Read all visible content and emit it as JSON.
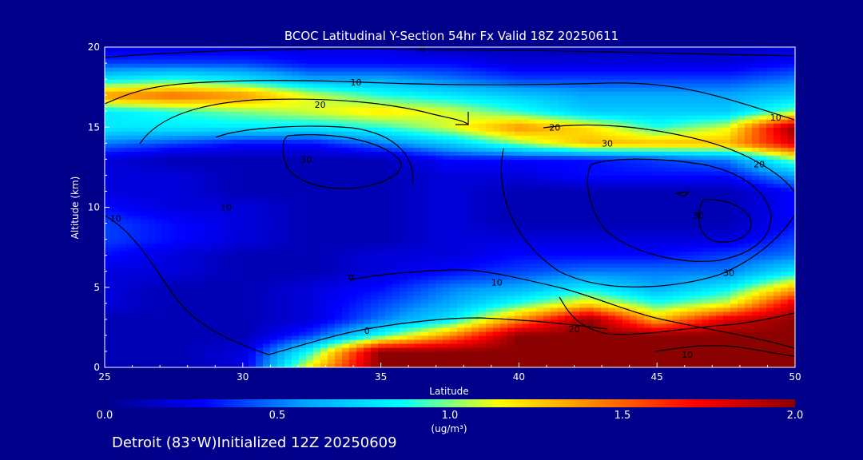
{
  "chart_data": {
    "type": "heatmap",
    "title": "BCOC Latitudinal Y-Section 54hr  Fx Valid 18Z 20250611",
    "xlabel": "Latitude",
    "ylabel": "Altitude (km)",
    "xlim": [
      25,
      50
    ],
    "ylim": [
      0,
      20
    ],
    "x_ticks": [
      "25",
      "30",
      "35",
      "40",
      "45",
      "50"
    ],
    "y_ticks": [
      "0",
      "5",
      "10",
      "15",
      "20"
    ],
    "colorbar": {
      "ticks": [
        "0.0",
        "0.5",
        "1.0",
        "1.5",
        "2.0"
      ],
      "range": [
        0,
        2
      ],
      "unit": "(ug/m³)",
      "colors": [
        "#00008b",
        "#0000ff",
        "#00a0ff",
        "#00ffff",
        "#ffff00",
        "#ff8000",
        "#ff0000",
        "#8b0000"
      ]
    },
    "footer": "Detroit (83°W)Initialized 12Z 20250609",
    "concentration_x": [
      25,
      27.5,
      30,
      32.5,
      35,
      37.5,
      40,
      42.5,
      45,
      47.5,
      50
    ],
    "concentration_y": [
      0,
      1,
      2,
      3,
      4,
      5,
      6,
      7,
      8,
      9,
      10,
      11,
      12,
      13,
      14,
      15,
      16,
      17,
      18,
      19,
      20
    ],
    "concentration": [
      [
        0.1,
        0.1,
        0.2,
        1.2,
        2.0,
        2.0,
        2.0,
        2.0,
        2.0,
        2.0,
        2.0
      ],
      [
        0.1,
        0.1,
        0.2,
        0.9,
        2.0,
        2.0,
        2.0,
        2.0,
        2.0,
        2.0,
        2.0
      ],
      [
        0.1,
        0.1,
        0.1,
        0.4,
        0.9,
        1.4,
        2.0,
        2.0,
        2.0,
        2.0,
        2.0
      ],
      [
        0.1,
        0.1,
        0.1,
        0.2,
        0.5,
        0.8,
        1.4,
        2.0,
        1.3,
        1.8,
        2.0
      ],
      [
        0.2,
        0.1,
        0.1,
        0.2,
        0.4,
        0.6,
        0.9,
        1.2,
        0.9,
        1.1,
        1.8
      ],
      [
        0.2,
        0.1,
        0.1,
        0.2,
        0.3,
        0.5,
        0.6,
        0.8,
        0.6,
        0.8,
        1.3
      ],
      [
        0.2,
        0.2,
        0.1,
        0.1,
        0.2,
        0.3,
        0.4,
        0.5,
        0.5,
        0.5,
        0.8
      ],
      [
        0.3,
        0.2,
        0.1,
        0.1,
        0.2,
        0.2,
        0.3,
        0.3,
        0.3,
        0.4,
        0.5
      ],
      [
        0.4,
        0.3,
        0.2,
        0.1,
        0.1,
        0.2,
        0.2,
        0.2,
        0.2,
        0.2,
        0.4
      ],
      [
        0.4,
        0.3,
        0.2,
        0.1,
        0.1,
        0.2,
        0.1,
        0.1,
        0.1,
        0.1,
        0.3
      ],
      [
        0.3,
        0.2,
        0.2,
        0.1,
        0.1,
        0.2,
        0.1,
        0.1,
        0.1,
        0.1,
        0.3
      ],
      [
        0.2,
        0.2,
        0.1,
        0.1,
        0.1,
        0.2,
        0.1,
        0.1,
        0.1,
        0.1,
        0.3
      ],
      [
        0.2,
        0.2,
        0.1,
        0.1,
        0.1,
        0.2,
        0.2,
        0.3,
        0.3,
        0.3,
        0.6
      ],
      [
        0.2,
        0.1,
        0.1,
        0.1,
        0.1,
        0.3,
        0.3,
        0.3,
        0.4,
        0.5,
        1.0
      ],
      [
        0.5,
        0.4,
        0.3,
        0.3,
        0.5,
        0.7,
        1.0,
        1.3,
        1.3,
        1.3,
        1.8
      ],
      [
        0.8,
        0.8,
        0.8,
        0.8,
        0.9,
        1.1,
        1.4,
        1.2,
        0.9,
        1.1,
        2.0
      ],
      [
        0.8,
        0.9,
        1.0,
        1.1,
        1.2,
        1.1,
        0.9,
        0.7,
        0.7,
        0.7,
        1.0
      ],
      [
        1.4,
        1.5,
        1.4,
        1.1,
        0.9,
        0.8,
        0.7,
        0.6,
        0.6,
        0.6,
        0.7
      ],
      [
        0.8,
        0.9,
        0.8,
        0.6,
        0.6,
        0.5,
        0.4,
        0.4,
        0.4,
        0.4,
        0.5
      ],
      [
        0.4,
        0.4,
        0.4,
        0.3,
        0.3,
        0.3,
        0.2,
        0.2,
        0.2,
        0.2,
        0.3
      ],
      [
        0.2,
        0.2,
        0.2,
        0.2,
        0.2,
        0.1,
        0.1,
        0.1,
        0.1,
        0.1,
        0.2
      ]
    ],
    "contour_labels": [
      {
        "text": "0",
        "x": 36.5,
        "y": 19.9
      },
      {
        "text": "10",
        "x": 34.1,
        "y": 17.8
      },
      {
        "text": "20",
        "x": 32.8,
        "y": 16.4
      },
      {
        "text": "20",
        "x": 41.3,
        "y": 15.0
      },
      {
        "text": "30",
        "x": 43.2,
        "y": 14.0
      },
      {
        "text": "10",
        "x": 49.3,
        "y": 15.6
      },
      {
        "text": "20",
        "x": 48.7,
        "y": 12.7
      },
      {
        "text": "30",
        "x": 32.3,
        "y": 13.0
      },
      {
        "text": "10",
        "x": 29.4,
        "y": 10.0
      },
      {
        "text": "10",
        "x": 25.4,
        "y": 9.3
      },
      {
        "text": "30",
        "x": 46.5,
        "y": 9.5
      },
      {
        "text": "10",
        "x": 39.2,
        "y": 5.3
      },
      {
        "text": "30",
        "x": 47.6,
        "y": 5.9
      },
      {
        "text": "0",
        "x": 34.5,
        "y": 2.3
      },
      {
        "text": "20",
        "x": 42.0,
        "y": 2.4
      },
      {
        "text": "10",
        "x": 46.1,
        "y": 0.8
      }
    ]
  }
}
